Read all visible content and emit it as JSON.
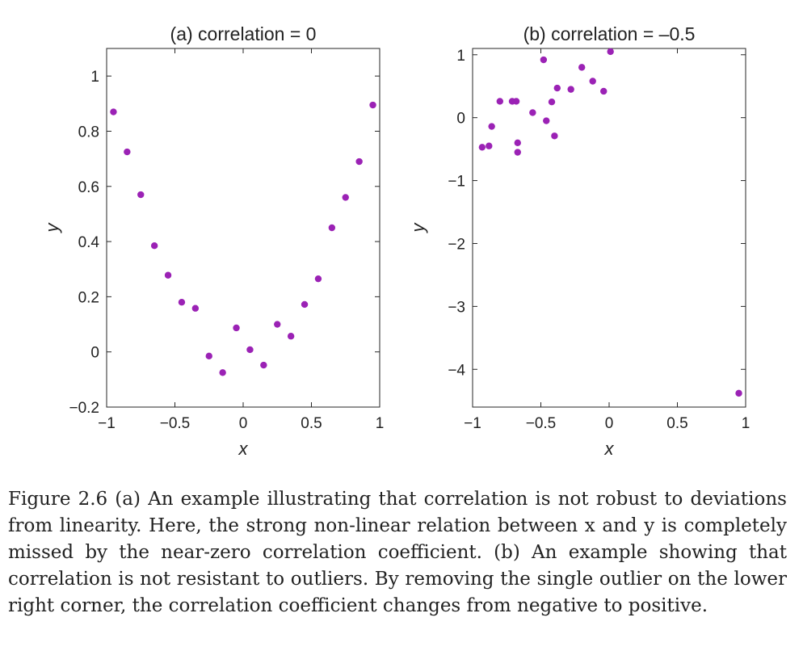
{
  "chart_data": [
    {
      "type": "scatter",
      "title": "(a)  correlation = 0",
      "xlabel": "x",
      "ylabel": "y",
      "xlim": [
        -1,
        1
      ],
      "ylim": [
        -0.2,
        1.1
      ],
      "xticks": [
        "−1",
        "−0.5",
        "0",
        "0.5",
        "1"
      ],
      "xtick_values": [
        -1,
        -0.5,
        0,
        0.5,
        1
      ],
      "yticks": [
        "−0.2",
        "0",
        "0.2",
        "0.4",
        "0.6",
        "0.8",
        "1"
      ],
      "ytick_values": [
        -0.2,
        0,
        0.2,
        0.4,
        0.6,
        0.8,
        1
      ],
      "grid": false,
      "marker_color": "#9b22b5",
      "points": [
        {
          "x": -0.95,
          "y": 0.87
        },
        {
          "x": -0.85,
          "y": 0.725
        },
        {
          "x": -0.75,
          "y": 0.57
        },
        {
          "x": -0.65,
          "y": 0.385
        },
        {
          "x": -0.55,
          "y": 0.278
        },
        {
          "x": -0.45,
          "y": 0.18
        },
        {
          "x": -0.35,
          "y": 0.158
        },
        {
          "x": -0.25,
          "y": -0.015
        },
        {
          "x": -0.15,
          "y": -0.075
        },
        {
          "x": -0.05,
          "y": 0.087
        },
        {
          "x": 0.05,
          "y": 0.008
        },
        {
          "x": 0.15,
          "y": -0.048
        },
        {
          "x": 0.25,
          "y": 0.1
        },
        {
          "x": 0.35,
          "y": 0.057
        },
        {
          "x": 0.45,
          "y": 0.172
        },
        {
          "x": 0.55,
          "y": 0.265
        },
        {
          "x": 0.65,
          "y": 0.45
        },
        {
          "x": 0.75,
          "y": 0.56
        },
        {
          "x": 0.85,
          "y": 0.69
        },
        {
          "x": 0.95,
          "y": 0.895
        }
      ]
    },
    {
      "type": "scatter",
      "title": "(b)  correlation = –0.5",
      "xlabel": "x",
      "ylabel": "y",
      "xlim": [
        -1,
        1
      ],
      "ylim": [
        -4.6,
        1.1
      ],
      "xticks": [
        "−1",
        "−0.5",
        "0",
        "0.5",
        "1"
      ],
      "xtick_values": [
        -1,
        -0.5,
        0,
        0.5,
        1
      ],
      "yticks": [
        "−4",
        "−3",
        "−2",
        "−1",
        "0",
        "1"
      ],
      "ytick_values": [
        -4,
        -3,
        -2,
        -1,
        0,
        1
      ],
      "grid": false,
      "marker_color": "#9b22b5",
      "points": [
        {
          "x": -0.93,
          "y": -0.47
        },
        {
          "x": -0.88,
          "y": -0.45
        },
        {
          "x": -0.86,
          "y": -0.14
        },
        {
          "x": -0.8,
          "y": 0.26
        },
        {
          "x": -0.71,
          "y": 0.26
        },
        {
          "x": -0.68,
          "y": 0.26
        },
        {
          "x": -0.67,
          "y": -0.4
        },
        {
          "x": -0.67,
          "y": -0.55
        },
        {
          "x": -0.56,
          "y": 0.08
        },
        {
          "x": -0.48,
          "y": 0.92
        },
        {
          "x": -0.46,
          "y": -0.05
        },
        {
          "x": -0.42,
          "y": 0.25
        },
        {
          "x": -0.4,
          "y": -0.29
        },
        {
          "x": -0.38,
          "y": 0.47
        },
        {
          "x": -0.28,
          "y": 0.45
        },
        {
          "x": -0.2,
          "y": 0.8
        },
        {
          "x": -0.12,
          "y": 0.58
        },
        {
          "x": -0.04,
          "y": 0.42
        },
        {
          "x": 0.01,
          "y": 1.05
        },
        {
          "x": 0.95,
          "y": -4.38
        }
      ]
    }
  ],
  "caption": {
    "text": "Figure 2.6 (a) An example illustrating that correlation is not robust to deviations from linearity. Here, the strong non-linear relation between x and y is completely missed by the near-zero correlation coefficient. (b) An example showing that correlation is not resistant to outliers. By removing the single outlier on the lower right corner, the correlation coefficient changes from negative to positive."
  }
}
